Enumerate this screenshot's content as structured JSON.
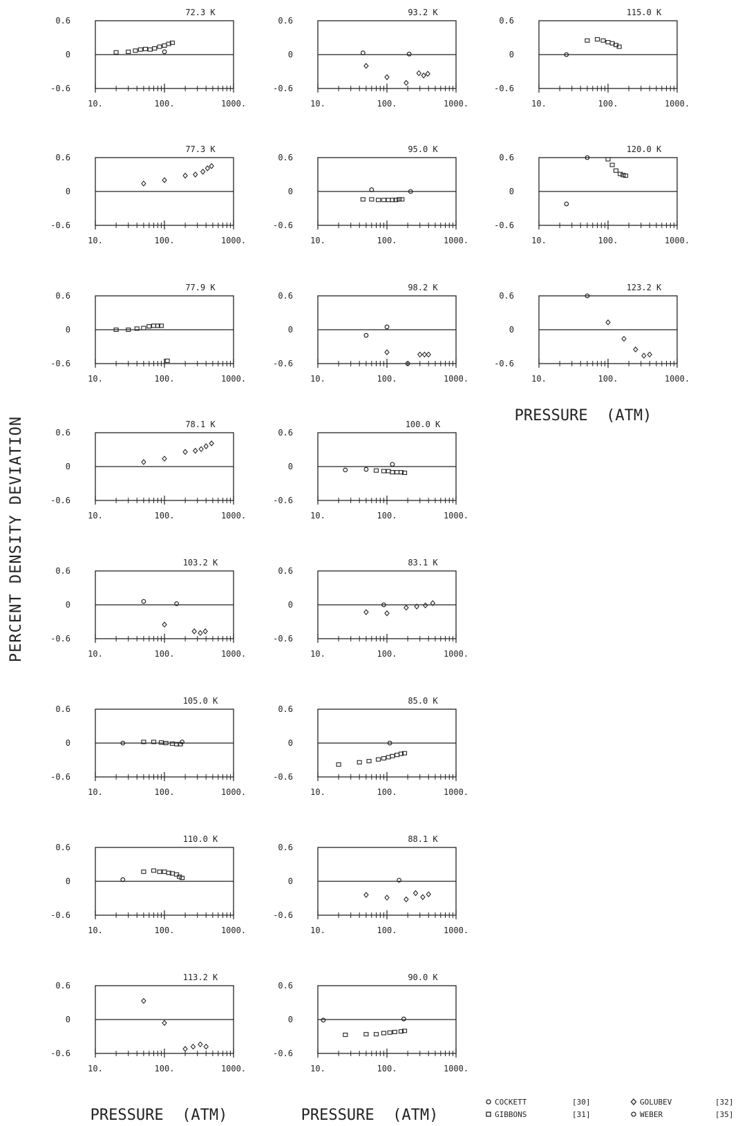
{
  "figure": {
    "ylabel": "PERCENT DENSITY DEVIATION",
    "xlabel": "PRESSURE  (ATM)",
    "y_ticks": [
      "0.6",
      "0",
      "-0.6"
    ],
    "x_ticks": [
      "10.",
      "100.",
      "1000."
    ],
    "legend": [
      {
        "marker": "circle",
        "name": "COCKETT",
        "ref": "[30]"
      },
      {
        "marker": "square",
        "name": "GIBBONS",
        "ref": "[31]"
      },
      {
        "marker": "diamond",
        "name": "GOLUBEV",
        "ref": "[32]"
      },
      {
        "marker": "circle",
        "name": "WEBER",
        "ref": "[35]"
      }
    ]
  },
  "chart_data": [
    {
      "type": "scatter",
      "title": "72.3 K",
      "xscale": "log",
      "xlim": [
        10,
        1000
      ],
      "ylim": [
        -0.6,
        0.6
      ],
      "series": [
        {
          "marker": "square",
          "points": [
            [
              20,
              0.04
            ],
            [
              30,
              0.05
            ],
            [
              38,
              0.07
            ],
            [
              45,
              0.09
            ],
            [
              53,
              0.1
            ],
            [
              62,
              0.09
            ],
            [
              72,
              0.11
            ],
            [
              85,
              0.14
            ],
            [
              100,
              0.16
            ],
            [
              115,
              0.19
            ],
            [
              130,
              0.21
            ]
          ]
        },
        {
          "marker": "circle",
          "points": [
            [
              100,
              0.05
            ]
          ]
        }
      ]
    },
    {
      "type": "scatter",
      "title": "93.2 K",
      "xscale": "log",
      "xlim": [
        10,
        1000
      ],
      "ylim": [
        -0.6,
        0.6
      ],
      "series": [
        {
          "marker": "circle",
          "points": [
            [
              45,
              0.03
            ],
            [
              210,
              0.01
            ]
          ]
        },
        {
          "marker": "diamond",
          "points": [
            [
              50,
              -0.2
            ],
            [
              100,
              -0.4
            ],
            [
              190,
              -0.5
            ],
            [
              290,
              -0.33
            ],
            [
              340,
              -0.37
            ],
            [
              390,
              -0.34
            ]
          ]
        }
      ]
    },
    {
      "type": "scatter",
      "title": "115.0 K",
      "xscale": "log",
      "xlim": [
        10,
        1000
      ],
      "ylim": [
        -0.6,
        0.6
      ],
      "series": [
        {
          "marker": "circle",
          "points": [
            [
              25,
              0.0
            ]
          ]
        },
        {
          "marker": "square",
          "points": [
            [
              50,
              0.25
            ],
            [
              70,
              0.27
            ],
            [
              85,
              0.25
            ],
            [
              100,
              0.22
            ],
            [
              115,
              0.2
            ],
            [
              130,
              0.17
            ],
            [
              145,
              0.14
            ]
          ]
        }
      ]
    },
    {
      "type": "scatter",
      "title": "77.3 K",
      "xscale": "log",
      "xlim": [
        10,
        1000
      ],
      "ylim": [
        -0.6,
        0.6
      ],
      "series": [
        {
          "marker": "diamond",
          "points": [
            [
              50,
              0.14
            ],
            [
              100,
              0.2
            ],
            [
              200,
              0.28
            ],
            [
              280,
              0.3
            ],
            [
              360,
              0.35
            ],
            [
              420,
              0.41
            ],
            [
              480,
              0.45
            ]
          ]
        }
      ]
    },
    {
      "type": "scatter",
      "title": "95.0 K",
      "xscale": "log",
      "xlim": [
        10,
        1000
      ],
      "ylim": [
        -0.6,
        0.6
      ],
      "series": [
        {
          "marker": "circle",
          "points": [
            [
              60,
              0.03
            ],
            [
              220,
              0.0
            ]
          ]
        },
        {
          "marker": "square",
          "points": [
            [
              45,
              -0.14
            ],
            [
              60,
              -0.14
            ],
            [
              75,
              -0.15
            ],
            [
              90,
              -0.15
            ],
            [
              105,
              -0.15
            ],
            [
              120,
              -0.15
            ],
            [
              135,
              -0.15
            ],
            [
              150,
              -0.14
            ],
            [
              165,
              -0.14
            ]
          ]
        }
      ]
    },
    {
      "type": "scatter",
      "title": "120.0 K",
      "xscale": "log",
      "xlim": [
        10,
        1000
      ],
      "ylim": [
        -0.6,
        0.6
      ],
      "series": [
        {
          "marker": "circle",
          "points": [
            [
              25,
              -0.22
            ],
            [
              50,
              0.6
            ]
          ]
        },
        {
          "marker": "square",
          "points": [
            [
              100,
              0.57
            ],
            [
              115,
              0.47
            ],
            [
              130,
              0.37
            ],
            [
              150,
              0.31
            ],
            [
              165,
              0.29
            ],
            [
              180,
              0.28
            ]
          ]
        }
      ]
    },
    {
      "type": "scatter",
      "title": "77.9 K",
      "xscale": "log",
      "xlim": [
        10,
        1000
      ],
      "ylim": [
        -0.6,
        0.6
      ],
      "series": [
        {
          "marker": "square",
          "points": [
            [
              20,
              0.0
            ],
            [
              30,
              0.0
            ],
            [
              40,
              0.02
            ],
            [
              50,
              0.03
            ],
            [
              60,
              0.06
            ],
            [
              70,
              0.07
            ],
            [
              80,
              0.07
            ],
            [
              90,
              0.07
            ]
          ]
        },
        {
          "marker": "square",
          "points": [
            [
              110,
              -0.55
            ]
          ]
        }
      ]
    },
    {
      "type": "scatter",
      "title": "98.2 K",
      "xscale": "log",
      "xlim": [
        10,
        1000
      ],
      "ylim": [
        -0.6,
        0.6
      ],
      "series": [
        {
          "marker": "circle",
          "points": [
            [
              50,
              -0.1
            ],
            [
              100,
              0.05
            ],
            [
              200,
              -0.6
            ]
          ]
        },
        {
          "marker": "diamond",
          "points": [
            [
              100,
              -0.4
            ],
            [
              300,
              -0.44
            ],
            [
              350,
              -0.44
            ],
            [
              400,
              -0.44
            ]
          ]
        }
      ]
    },
    {
      "type": "scatter",
      "title": "123.2 K",
      "xscale": "log",
      "xlim": [
        10,
        1000
      ],
      "ylim": [
        -0.6,
        0.6
      ],
      "series": [
        {
          "marker": "circle",
          "points": [
            [
              50,
              0.6
            ]
          ]
        },
        {
          "marker": "diamond",
          "points": [
            [
              100,
              0.13
            ],
            [
              170,
              -0.16
            ],
            [
              250,
              -0.35
            ],
            [
              330,
              -0.46
            ],
            [
              400,
              -0.44
            ]
          ]
        }
      ]
    },
    {
      "type": "scatter",
      "title": "78.1 K",
      "xscale": "log",
      "xlim": [
        10,
        1000
      ],
      "ylim": [
        -0.6,
        0.6
      ],
      "series": [
        {
          "marker": "diamond",
          "points": [
            [
              50,
              0.08
            ],
            [
              100,
              0.14
            ],
            [
              200,
              0.26
            ],
            [
              280,
              0.28
            ],
            [
              340,
              0.31
            ],
            [
              400,
              0.36
            ],
            [
              480,
              0.41
            ]
          ]
        }
      ]
    },
    {
      "type": "scatter",
      "title": "100.0 K",
      "xscale": "log",
      "xlim": [
        10,
        1000
      ],
      "ylim": [
        -0.6,
        0.6
      ],
      "series": [
        {
          "marker": "circle",
          "points": [
            [
              25,
              -0.06
            ],
            [
              50,
              -0.05
            ],
            [
              120,
              0.04
            ]
          ]
        },
        {
          "marker": "square",
          "points": [
            [
              70,
              -0.07
            ],
            [
              90,
              -0.08
            ],
            [
              105,
              -0.08
            ],
            [
              120,
              -0.1
            ],
            [
              140,
              -0.1
            ],
            [
              160,
              -0.1
            ],
            [
              180,
              -0.11
            ]
          ]
        }
      ]
    },
    {
      "type": "scatter",
      "title": "103.2 K",
      "xscale": "log",
      "xlim": [
        10,
        1000
      ],
      "ylim": [
        -0.6,
        0.6
      ],
      "series": [
        {
          "marker": "circle",
          "points": [
            [
              50,
              0.06
            ],
            [
              150,
              0.02
            ]
          ]
        },
        {
          "marker": "diamond",
          "points": [
            [
              100,
              -0.35
            ],
            [
              270,
              -0.47
            ],
            [
              330,
              -0.5
            ],
            [
              390,
              -0.47
            ]
          ]
        }
      ]
    },
    {
      "type": "scatter",
      "title": "83.1 K",
      "xscale": "log",
      "xlim": [
        10,
        1000
      ],
      "ylim": [
        -0.6,
        0.6
      ],
      "series": [
        {
          "marker": "circle",
          "points": [
            [
              90,
              0.0
            ]
          ]
        },
        {
          "marker": "diamond",
          "points": [
            [
              50,
              -0.13
            ],
            [
              100,
              -0.15
            ],
            [
              190,
              -0.05
            ],
            [
              270,
              -0.03
            ],
            [
              360,
              -0.01
            ],
            [
              460,
              0.03
            ]
          ]
        }
      ]
    },
    {
      "type": "scatter",
      "title": "105.0 K",
      "xscale": "log",
      "xlim": [
        10,
        1000
      ],
      "ylim": [
        -0.6,
        0.6
      ],
      "series": [
        {
          "marker": "circle",
          "points": [
            [
              25,
              0.0
            ],
            [
              180,
              0.02
            ]
          ]
        },
        {
          "marker": "square",
          "points": [
            [
              50,
              0.02
            ],
            [
              70,
              0.02
            ],
            [
              90,
              0.01
            ],
            [
              105,
              0.0
            ],
            [
              130,
              -0.01
            ],
            [
              150,
              -0.02
            ],
            [
              170,
              -0.02
            ]
          ]
        }
      ]
    },
    {
      "type": "scatter",
      "title": "85.0 K",
      "xscale": "log",
      "xlim": [
        10,
        1000
      ],
      "ylim": [
        -0.6,
        0.6
      ],
      "series": [
        {
          "marker": "circle",
          "points": [
            [
              110,
              0.0
            ]
          ]
        },
        {
          "marker": "square",
          "points": [
            [
              20,
              -0.38
            ],
            [
              40,
              -0.34
            ],
            [
              55,
              -0.32
            ],
            [
              75,
              -0.29
            ],
            [
              90,
              -0.27
            ],
            [
              105,
              -0.25
            ],
            [
              120,
              -0.23
            ],
            [
              140,
              -0.21
            ],
            [
              160,
              -0.19
            ],
            [
              180,
              -0.18
            ]
          ]
        }
      ]
    },
    {
      "type": "scatter",
      "title": "110.0 K",
      "xscale": "log",
      "xlim": [
        10,
        1000
      ],
      "ylim": [
        -0.6,
        0.6
      ],
      "series": [
        {
          "marker": "circle",
          "points": [
            [
              25,
              0.03
            ]
          ]
        },
        {
          "marker": "square",
          "points": [
            [
              50,
              0.17
            ],
            [
              70,
              0.19
            ],
            [
              85,
              0.17
            ],
            [
              100,
              0.17
            ],
            [
              115,
              0.15
            ],
            [
              130,
              0.14
            ],
            [
              150,
              0.12
            ],
            [
              165,
              0.08
            ],
            [
              180,
              0.06
            ]
          ]
        }
      ]
    },
    {
      "type": "scatter",
      "title": "88.1 K",
      "xscale": "log",
      "xlim": [
        10,
        1000
      ],
      "ylim": [
        -0.6,
        0.6
      ],
      "series": [
        {
          "marker": "circle",
          "points": [
            [
              150,
              0.02
            ]
          ]
        },
        {
          "marker": "diamond",
          "points": [
            [
              50,
              -0.24
            ],
            [
              100,
              -0.29
            ],
            [
              190,
              -0.32
            ],
            [
              260,
              -0.21
            ],
            [
              330,
              -0.28
            ],
            [
              400,
              -0.23
            ]
          ]
        }
      ]
    },
    {
      "type": "scatter",
      "title": "113.2 K",
      "xscale": "log",
      "xlim": [
        10,
        1000
      ],
      "ylim": [
        -0.6,
        0.6
      ],
      "series": [
        {
          "marker": "diamond",
          "points": [
            [
              50,
              0.33
            ],
            [
              100,
              -0.06
            ],
            [
              200,
              -0.52
            ],
            [
              260,
              -0.48
            ],
            [
              330,
              -0.44
            ],
            [
              400,
              -0.48
            ]
          ]
        }
      ]
    },
    {
      "type": "scatter",
      "title": "90.0 K",
      "xscale": "log",
      "xlim": [
        10,
        1000
      ],
      "ylim": [
        -0.6,
        0.6
      ],
      "series": [
        {
          "marker": "circle",
          "points": [
            [
              12,
              -0.01
            ],
            [
              175,
              0.01
            ]
          ]
        },
        {
          "marker": "square",
          "points": [
            [
              25,
              -0.27
            ],
            [
              50,
              -0.26
            ],
            [
              70,
              -0.26
            ],
            [
              90,
              -0.24
            ],
            [
              110,
              -0.23
            ],
            [
              130,
              -0.22
            ],
            [
              160,
              -0.21
            ],
            [
              180,
              -0.2
            ]
          ]
        }
      ]
    }
  ]
}
